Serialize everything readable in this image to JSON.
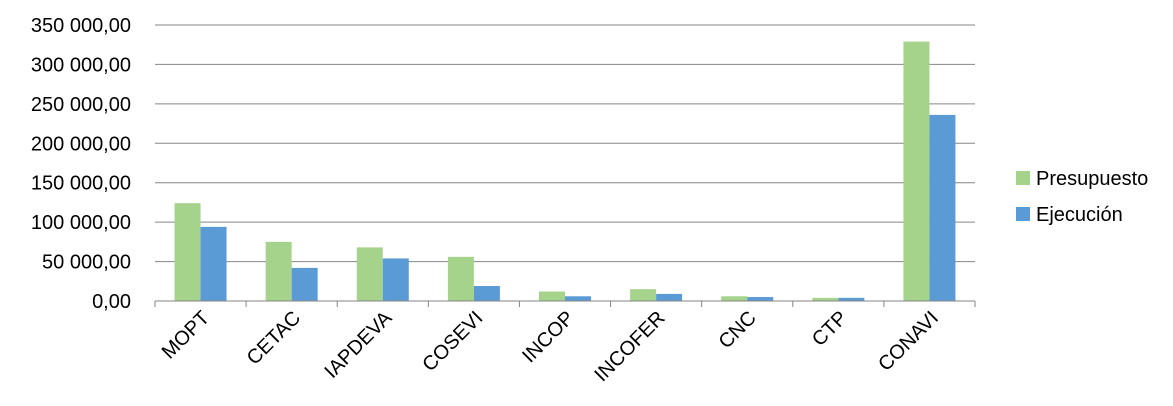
{
  "chart_data": {
    "type": "bar",
    "title": "",
    "xlabel": "",
    "ylabel": "",
    "categories": [
      "MOPT",
      "CETAC",
      "IAPDEVA",
      "COSEVI",
      "INCOP",
      "INCOFER",
      "CNC",
      "CTP",
      "CONAVI"
    ],
    "series": [
      {
        "name": "Presupuesto",
        "color": "#A6D38C",
        "values": [
          124000,
          75000,
          68000,
          56000,
          12000,
          15000,
          6000,
          4000,
          329000
        ]
      },
      {
        "name": "Ejecución",
        "color": "#5B9BD5",
        "values": [
          94000,
          42000,
          54000,
          19000,
          6000,
          9000,
          5000,
          4000,
          236000
        ]
      }
    ],
    "ylim": [
      0,
      350000
    ],
    "yticks": [
      0,
      50000,
      100000,
      150000,
      200000,
      250000,
      300000,
      350000
    ],
    "ytick_labels": [
      "0,00",
      "50 000,00",
      "100 000,00",
      "150 000,00",
      "200 000,00",
      "250 000,00",
      "300 000,00",
      "350 000,00"
    ],
    "grid": true,
    "legend_position": "right"
  }
}
